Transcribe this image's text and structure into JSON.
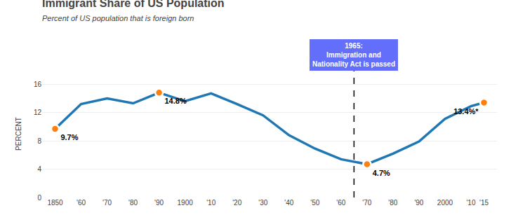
{
  "chart_data": {
    "type": "line",
    "title": "Immigrant Share of US Population",
    "subtitle": "Percent of US population that is foreign born",
    "ylabel": "PERCENT",
    "x": [
      1850,
      1860,
      1870,
      1880,
      1890,
      1900,
      1910,
      1920,
      1930,
      1940,
      1950,
      1960,
      1970,
      1980,
      1990,
      2000,
      2010,
      2015
    ],
    "values": [
      9.7,
      13.2,
      14.0,
      13.3,
      14.8,
      13.6,
      14.7,
      13.2,
      11.6,
      8.8,
      6.9,
      5.4,
      4.7,
      6.2,
      7.9,
      11.1,
      12.9,
      13.4
    ],
    "xlim": [
      1845,
      2020
    ],
    "xticks": [
      1850,
      {
        "value": 1860,
        "label": "'60"
      },
      {
        "value": 1870,
        "label": "'70"
      },
      {
        "value": 1880,
        "label": "'80"
      },
      {
        "value": 1890,
        "label": "'90"
      },
      1900,
      {
        "value": 1910,
        "label": "'10"
      },
      {
        "value": 1920,
        "label": "'20"
      },
      {
        "value": 1930,
        "label": "'30"
      },
      {
        "value": 1940,
        "label": "'40"
      },
      {
        "value": 1950,
        "label": "'50"
      },
      {
        "value": 1960,
        "label": "'60"
      },
      {
        "value": 1970,
        "label": "'70"
      },
      {
        "value": 1980,
        "label": "'80"
      },
      {
        "value": 1990,
        "label": "'90"
      },
      2000,
      {
        "value": 2010,
        "label": "'10"
      },
      {
        "value": 2015,
        "label": "'15"
      }
    ],
    "ylim": [
      0,
      18
    ],
    "yticks": [
      0,
      4,
      8,
      12,
      16
    ],
    "grid": true,
    "highlights": [
      {
        "x": 1850,
        "y": 9.7,
        "label": "9.7%"
      },
      {
        "x": 1890,
        "y": 14.8,
        "label": "14.8%"
      },
      {
        "x": 1970,
        "y": 4.7,
        "label": "4.7%"
      },
      {
        "x": 2015,
        "y": 13.4,
        "label": "13.4%*"
      }
    ],
    "annotations": [
      {
        "x": 1965,
        "text": "1965:\nImmigration and\nNationality Act is passed"
      }
    ]
  }
}
